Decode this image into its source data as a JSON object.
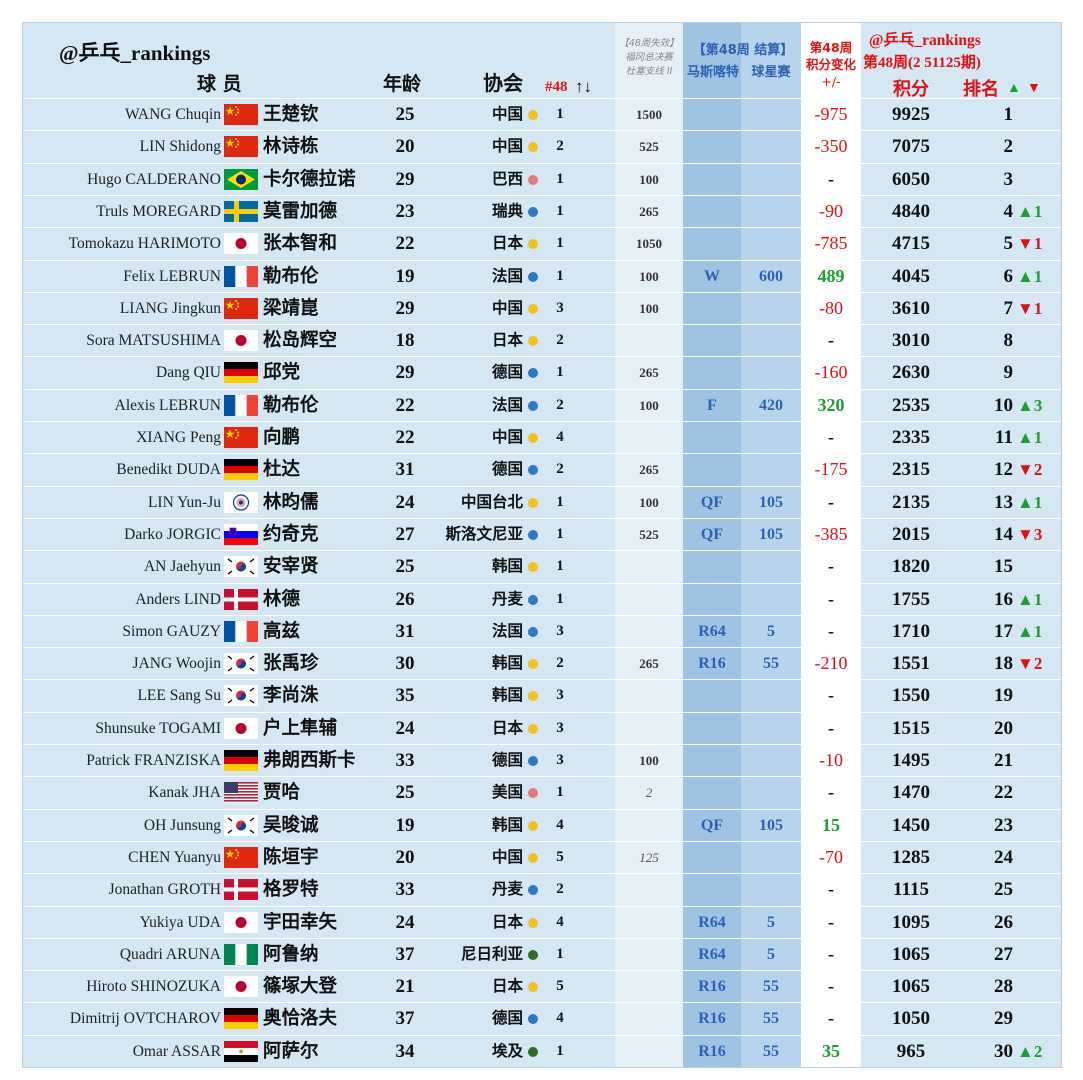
{
  "header": {
    "account": "@乒乓_rankings",
    "col_player": "球 员",
    "col_age": "年龄",
    "col_assoc": "协会",
    "col_assoc_rank": "#48",
    "col_assoc_rank_arrows": "↑↓",
    "col_prev_line1": "【48周失效】",
    "col_prev_line2": "福冈总决赛",
    "col_prev_line3": "杜塞支线 II",
    "col_event_line1": "【第48周 结算】",
    "col_event_res": "马斯喀特",
    "col_event_pts": "球星赛",
    "col_change_line1": "第48周",
    "col_change_line2": "积分变化",
    "col_change_line3": "+/-",
    "col_rank_account": "@乒乓_rankings",
    "col_rank_week": "第48周(2 51125期)",
    "col_points": "积分",
    "col_rank": "排名",
    "col_rank_up": "▲",
    "col_rank_down": "▼"
  },
  "colors": {
    "dot_yellow": "#f2c11d",
    "dot_blue": "#2f78c4",
    "dot_red": "#e8767a",
    "dot_green": "#2f6b2f",
    "change_negative": "#e01010",
    "change_positive": "#1aa02e"
  },
  "rows": [
    {
      "en": "WANG Chuqin",
      "flag": "china",
      "zh": "王楚钦",
      "age": "25",
      "assoc": "中国",
      "dot": "yellow",
      "arank": "1",
      "prev": "1500",
      "res": "",
      "pts": "",
      "chg": "-975",
      "chg_type": "neg",
      "total": "9925",
      "rank": "1",
      "mv": "",
      "mv_dir": ""
    },
    {
      "en": "LIN Shidong",
      "flag": "china",
      "zh": "林诗栋",
      "age": "20",
      "assoc": "中国",
      "dot": "yellow",
      "arank": "2",
      "prev": "525",
      "res": "",
      "pts": "",
      "chg": "-350",
      "chg_type": "neg",
      "total": "7075",
      "rank": "2",
      "mv": "",
      "mv_dir": ""
    },
    {
      "en": "Hugo CALDERANO",
      "flag": "brazil",
      "zh": "卡尔德拉诺",
      "age": "29",
      "assoc": "巴西",
      "dot": "red",
      "arank": "1",
      "prev": "100",
      "res": "",
      "pts": "",
      "chg": "-",
      "chg_type": "none",
      "total": "6050",
      "rank": "3",
      "mv": "",
      "mv_dir": ""
    },
    {
      "en": "Truls MOREGARD",
      "flag": "sweden",
      "zh": "莫雷加德",
      "age": "23",
      "assoc": "瑞典",
      "dot": "blue",
      "arank": "1",
      "prev": "265",
      "res": "",
      "pts": "",
      "chg": "-90",
      "chg_type": "neg",
      "total": "4840",
      "rank": "4",
      "mv": "▲1",
      "mv_dir": "up"
    },
    {
      "en": "Tomokazu HARIMOTO",
      "flag": "japan",
      "zh": "张本智和",
      "age": "22",
      "assoc": "日本",
      "dot": "yellow",
      "arank": "1",
      "prev": "1050",
      "res": "",
      "pts": "",
      "chg": "-785",
      "chg_type": "neg",
      "total": "4715",
      "rank": "5",
      "mv": "▼1",
      "mv_dir": "down"
    },
    {
      "en": "Felix LEBRUN",
      "flag": "france",
      "zh": "勒布伦",
      "age": "19",
      "assoc": "法国",
      "dot": "blue",
      "arank": "1",
      "prev": "100",
      "res": "W",
      "pts": "600",
      "chg": "489",
      "chg_type": "pos",
      "total": "4045",
      "rank": "6",
      "mv": "▲1",
      "mv_dir": "up"
    },
    {
      "en": "LIANG Jingkun",
      "flag": "china",
      "zh": "梁靖崑",
      "age": "29",
      "assoc": "中国",
      "dot": "yellow",
      "arank": "3",
      "prev": "100",
      "res": "",
      "pts": "",
      "chg": "-80",
      "chg_type": "neg",
      "total": "3610",
      "rank": "7",
      "mv": "▼1",
      "mv_dir": "down"
    },
    {
      "en": "Sora MATSUSHIMA",
      "flag": "japan",
      "zh": "松岛辉空",
      "age": "18",
      "assoc": "日本",
      "dot": "yellow",
      "arank": "2",
      "prev": "",
      "res": "",
      "pts": "",
      "chg": "-",
      "chg_type": "none",
      "total": "3010",
      "rank": "8",
      "mv": "",
      "mv_dir": ""
    },
    {
      "en": "Dang QIU",
      "flag": "germany",
      "zh": "邱党",
      "age": "29",
      "assoc": "德国",
      "dot": "blue",
      "arank": "1",
      "prev": "265",
      "res": "",
      "pts": "",
      "chg": "-160",
      "chg_type": "neg",
      "total": "2630",
      "rank": "9",
      "mv": "",
      "mv_dir": ""
    },
    {
      "en": "Alexis LEBRUN",
      "flag": "france",
      "zh": "勒布伦",
      "age": "22",
      "assoc": "法国",
      "dot": "blue",
      "arank": "2",
      "prev": "100",
      "res": "F",
      "pts": "420",
      "chg": "320",
      "chg_type": "pos",
      "total": "2535",
      "rank": "10",
      "mv": "▲3",
      "mv_dir": "up"
    },
    {
      "en": "XIANG Peng",
      "flag": "china",
      "zh": "向鹏",
      "age": "22",
      "assoc": "中国",
      "dot": "yellow",
      "arank": "4",
      "prev": "",
      "res": "",
      "pts": "",
      "chg": "-",
      "chg_type": "none",
      "total": "2335",
      "rank": "11",
      "mv": "▲1",
      "mv_dir": "up"
    },
    {
      "en": "Benedikt DUDA",
      "flag": "germany",
      "zh": "杜达",
      "age": "31",
      "assoc": "德国",
      "dot": "blue",
      "arank": "2",
      "prev": "265",
      "res": "",
      "pts": "",
      "chg": "-175",
      "chg_type": "neg",
      "total": "2315",
      "rank": "12",
      "mv": "▼2",
      "mv_dir": "down"
    },
    {
      "en": "LIN Yun-Ju",
      "flag": "tpe",
      "zh": "林昀儒",
      "age": "24",
      "assoc": "中国台北",
      "dot": "yellow",
      "arank": "1",
      "prev": "100",
      "res": "QF",
      "pts": "105",
      "chg": "-",
      "chg_type": "none",
      "total": "2135",
      "rank": "13",
      "mv": "▲1",
      "mv_dir": "up"
    },
    {
      "en": "Darko JORGIC",
      "flag": "slovenia",
      "zh": "约奇克",
      "age": "27",
      "assoc": "斯洛文尼亚",
      "dot": "blue",
      "arank": "1",
      "prev": "525",
      "res": "QF",
      "pts": "105",
      "chg": "-385",
      "chg_type": "neg",
      "total": "2015",
      "rank": "14",
      "mv": "▼3",
      "mv_dir": "down"
    },
    {
      "en": "AN Jaehyun",
      "flag": "korea",
      "zh": "安宰贤",
      "age": "25",
      "assoc": "韩国",
      "dot": "yellow",
      "arank": "1",
      "prev": "",
      "res": "",
      "pts": "",
      "chg": "-",
      "chg_type": "none",
      "total": "1820",
      "rank": "15",
      "mv": "",
      "mv_dir": ""
    },
    {
      "en": "Anders LIND",
      "flag": "denmark",
      "zh": "林德",
      "age": "26",
      "assoc": "丹麦",
      "dot": "blue",
      "arank": "1",
      "prev": "",
      "res": "",
      "pts": "",
      "chg": "-",
      "chg_type": "none",
      "total": "1755",
      "rank": "16",
      "mv": "▲1",
      "mv_dir": "up"
    },
    {
      "en": "Simon GAUZY",
      "flag": "france",
      "zh": "高兹",
      "age": "31",
      "assoc": "法国",
      "dot": "blue",
      "arank": "3",
      "prev": "",
      "res": "R64",
      "pts": "5",
      "chg": "-",
      "chg_type": "none",
      "total": "1710",
      "rank": "17",
      "mv": "▲1",
      "mv_dir": "up"
    },
    {
      "en": "JANG Woojin",
      "flag": "korea",
      "zh": "张禹珍",
      "age": "30",
      "assoc": "韩国",
      "dot": "yellow",
      "arank": "2",
      "prev": "265",
      "res": "R16",
      "pts": "55",
      "chg": "-210",
      "chg_type": "neg",
      "total": "1551",
      "rank": "18",
      "mv": "▼2",
      "mv_dir": "down"
    },
    {
      "en": "LEE Sang Su",
      "flag": "korea",
      "zh": "李尚洙",
      "age": "35",
      "assoc": "韩国",
      "dot": "yellow",
      "arank": "3",
      "prev": "",
      "res": "",
      "pts": "",
      "chg": "-",
      "chg_type": "none",
      "total": "1550",
      "rank": "19",
      "mv": "",
      "mv_dir": ""
    },
    {
      "en": "Shunsuke TOGAMI",
      "flag": "japan",
      "zh": "户上隼辅",
      "age": "24",
      "assoc": "日本",
      "dot": "yellow",
      "arank": "3",
      "prev": "",
      "res": "",
      "pts": "",
      "chg": "-",
      "chg_type": "none",
      "total": "1515",
      "rank": "20",
      "mv": "",
      "mv_dir": ""
    },
    {
      "en": "Patrick FRANZISKA",
      "flag": "germany",
      "zh": "弗朗西斯卡",
      "age": "33",
      "assoc": "德国",
      "dot": "blue",
      "arank": "3",
      "prev": "100",
      "res": "",
      "pts": "",
      "chg": "-10",
      "chg_type": "neg",
      "total": "1495",
      "rank": "21",
      "mv": "",
      "mv_dir": ""
    },
    {
      "en": "Kanak JHA",
      "flag": "usa",
      "zh": "贾哈",
      "age": "25",
      "assoc": "美国",
      "dot": "red",
      "arank": "1",
      "prev": "2",
      "prev_style": "italic",
      "res": "",
      "pts": "",
      "chg": "-",
      "chg_type": "none",
      "total": "1470",
      "rank": "22",
      "mv": "",
      "mv_dir": ""
    },
    {
      "en": "OH Junsung",
      "flag": "korea",
      "zh": "吴晙诚",
      "age": "19",
      "assoc": "韩国",
      "dot": "yellow",
      "arank": "4",
      "prev": "",
      "res": "QF",
      "pts": "105",
      "chg": "15",
      "chg_type": "pos",
      "total": "1450",
      "rank": "23",
      "mv": "",
      "mv_dir": ""
    },
    {
      "en": "CHEN Yuanyu",
      "flag": "china",
      "zh": "陈垣宇",
      "age": "20",
      "assoc": "中国",
      "dot": "yellow",
      "arank": "5",
      "prev": "125",
      "prev_style": "italic",
      "res": "",
      "pts": "",
      "chg": "-70",
      "chg_type": "neg",
      "total": "1285",
      "rank": "24",
      "mv": "",
      "mv_dir": ""
    },
    {
      "en": "Jonathan GROTH",
      "flag": "denmark",
      "zh": "格罗特",
      "age": "33",
      "assoc": "丹麦",
      "dot": "blue",
      "arank": "2",
      "prev": "",
      "res": "",
      "pts": "",
      "chg": "-",
      "chg_type": "none",
      "total": "1115",
      "rank": "25",
      "mv": "",
      "mv_dir": ""
    },
    {
      "en": "Yukiya UDA",
      "flag": "japan",
      "zh": "宇田幸矢",
      "age": "24",
      "assoc": "日本",
      "dot": "yellow",
      "arank": "4",
      "prev": "",
      "res": "R64",
      "pts": "5",
      "chg": "-",
      "chg_type": "none",
      "total": "1095",
      "rank": "26",
      "mv": "",
      "mv_dir": ""
    },
    {
      "en": "Quadri ARUNA",
      "flag": "nigeria",
      "zh": "阿鲁纳",
      "age": "37",
      "assoc": "尼日利亚",
      "dot": "green",
      "arank": "1",
      "prev": "",
      "res": "R64",
      "pts": "5",
      "chg": "-",
      "chg_type": "none",
      "total": "1065",
      "rank": "27",
      "mv": "",
      "mv_dir": ""
    },
    {
      "en": "Hiroto SHINOZUKA",
      "flag": "japan",
      "zh": "篠塚大登",
      "age": "21",
      "assoc": "日本",
      "dot": "yellow",
      "arank": "5",
      "prev": "",
      "res": "R16",
      "pts": "55",
      "chg": "-",
      "chg_type": "none",
      "total": "1065",
      "rank": "28",
      "mv": "",
      "mv_dir": ""
    },
    {
      "en": "Dimitrij OVTCHAROV",
      "flag": "germany",
      "zh": "奥恰洛夫",
      "age": "37",
      "assoc": "德国",
      "dot": "blue",
      "arank": "4",
      "prev": "",
      "res": "R16",
      "pts": "55",
      "chg": "-",
      "chg_type": "none",
      "total": "1050",
      "rank": "29",
      "mv": "",
      "mv_dir": ""
    },
    {
      "en": "Omar ASSAR",
      "flag": "egypt",
      "zh": "阿萨尔",
      "age": "34",
      "assoc": "埃及",
      "dot": "green",
      "arank": "1",
      "prev": "",
      "res": "R16",
      "pts": "55",
      "chg": "35",
      "chg_type": "pos",
      "total": "965",
      "rank": "30",
      "mv": "▲2",
      "mv_dir": "up"
    }
  ]
}
